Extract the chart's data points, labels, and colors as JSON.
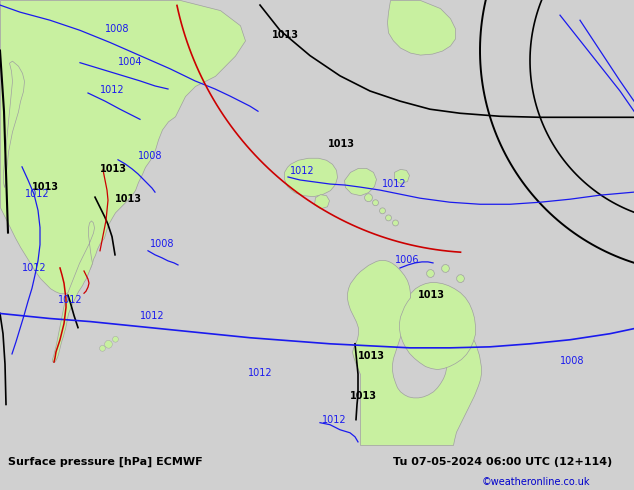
{
  "title_left": "Surface pressure [hPa] ECMWF",
  "title_right": "Tu 07-05-2024 06:00 UTC (12+114)",
  "copyright": "©weatheronline.co.uk",
  "land_color": "#c8f0a0",
  "ocean_color": "#d8d8d8",
  "border_color": "#a0a0a0",
  "footer_bg": "#d0d0d0",
  "contour_black": "#000000",
  "contour_blue": "#1a1aee",
  "contour_red": "#cc0000",
  "lw_main": 1.2,
  "lw_thin": 0.9,
  "label_fs": 7,
  "footer_fs": 8,
  "copy_fs": 7,
  "copy_color": "#0000cc"
}
